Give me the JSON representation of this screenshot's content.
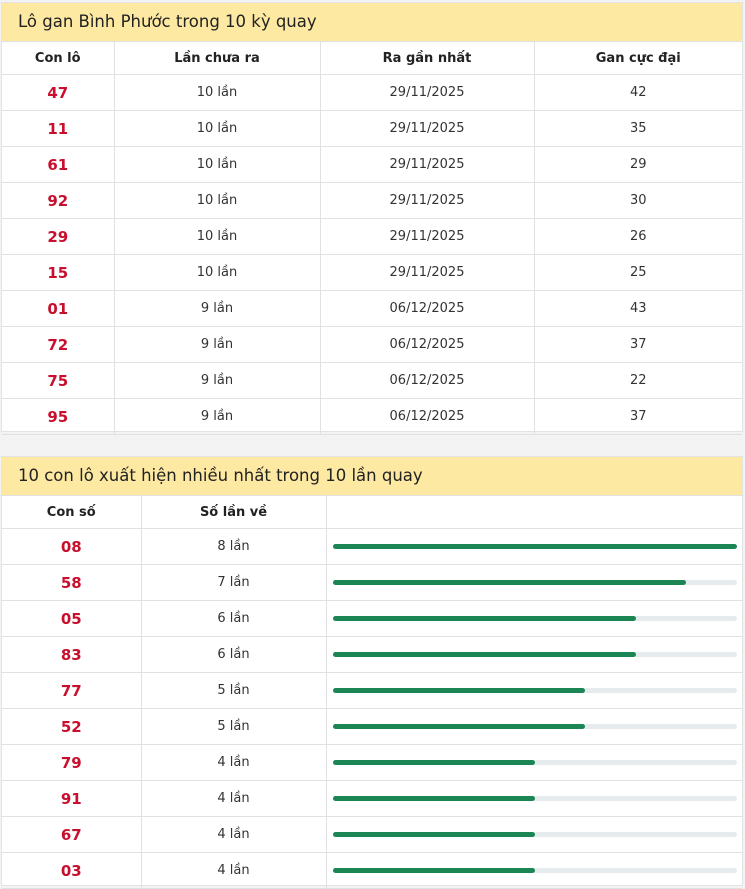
{
  "gan": {
    "title": "Lô gan Bình Phước trong 10 kỳ quay",
    "headers": [
      "Con lô",
      "Lần chưa ra",
      "Ra gần nhất",
      "Gan cực đại"
    ],
    "rows": [
      {
        "lo": "47",
        "chua_ra": "10 lần",
        "gan_nhat": "29/11/2025",
        "cuc_dai": "42"
      },
      {
        "lo": "11",
        "chua_ra": "10 lần",
        "gan_nhat": "29/11/2025",
        "cuc_dai": "35"
      },
      {
        "lo": "61",
        "chua_ra": "10 lần",
        "gan_nhat": "29/11/2025",
        "cuc_dai": "29"
      },
      {
        "lo": "92",
        "chua_ra": "10 lần",
        "gan_nhat": "29/11/2025",
        "cuc_dai": "30"
      },
      {
        "lo": "29",
        "chua_ra": "10 lần",
        "gan_nhat": "29/11/2025",
        "cuc_dai": "26"
      },
      {
        "lo": "15",
        "chua_ra": "10 lần",
        "gan_nhat": "29/11/2025",
        "cuc_dai": "25"
      },
      {
        "lo": "01",
        "chua_ra": "9 lần",
        "gan_nhat": "06/12/2025",
        "cuc_dai": "43"
      },
      {
        "lo": "72",
        "chua_ra": "9 lần",
        "gan_nhat": "06/12/2025",
        "cuc_dai": "37"
      },
      {
        "lo": "75",
        "chua_ra": "9 lần",
        "gan_nhat": "06/12/2025",
        "cuc_dai": "22"
      },
      {
        "lo": "95",
        "chua_ra": "9 lần",
        "gan_nhat": "06/12/2025",
        "cuc_dai": "37"
      }
    ]
  },
  "frequent": {
    "title": "10 con lô xuất hiện nhiều nhất trong 10 lần quay",
    "headers": [
      "Con số",
      "Số lần về",
      ""
    ],
    "max_count": 8,
    "rows": [
      {
        "so": "08",
        "label": "8 lần",
        "count": 8
      },
      {
        "so": "58",
        "label": "7 lần",
        "count": 7
      },
      {
        "so": "05",
        "label": "6 lần",
        "count": 6
      },
      {
        "so": "83",
        "label": "6 lần",
        "count": 6
      },
      {
        "so": "77",
        "label": "5 lần",
        "count": 5
      },
      {
        "so": "52",
        "label": "5 lần",
        "count": 5
      },
      {
        "so": "79",
        "label": "4 lần",
        "count": 4
      },
      {
        "so": "91",
        "label": "4 lần",
        "count": 4
      },
      {
        "so": "67",
        "label": "4 lần",
        "count": 4
      },
      {
        "so": "03",
        "label": "4 lần",
        "count": 4
      }
    ]
  },
  "colors": {
    "title_bg": "#fde9a2",
    "number_red": "#c8102e",
    "bar_green": "#1b8654",
    "bar_track": "#e6ebee"
  }
}
